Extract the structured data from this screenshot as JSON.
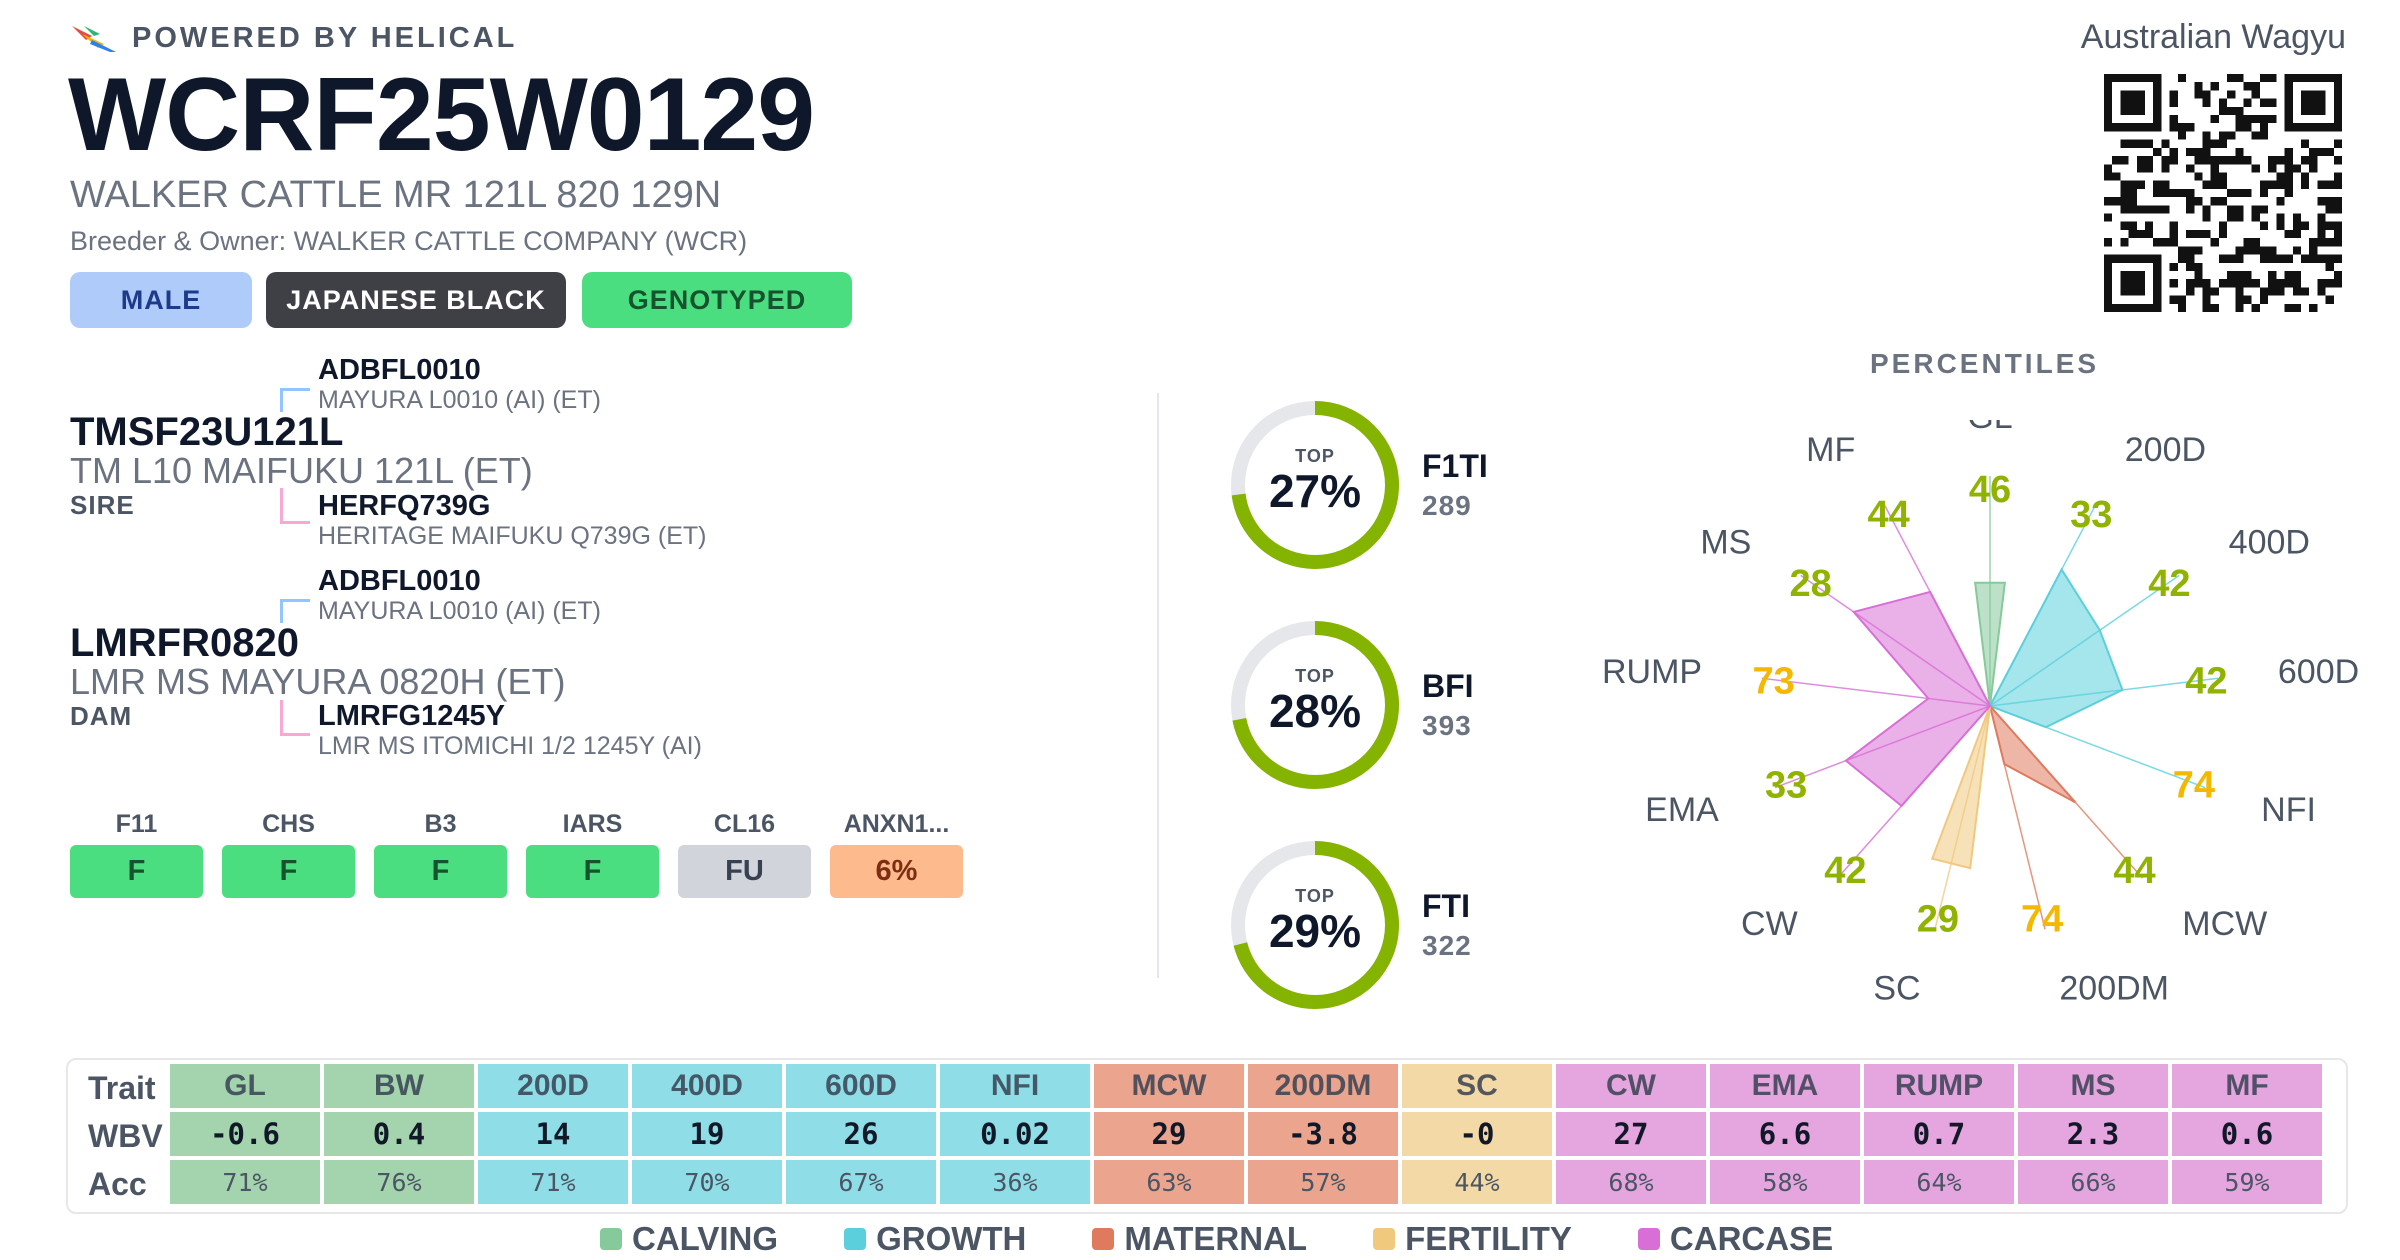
{
  "header": {
    "powered_by": "POWERED BY HELICAL",
    "animal_id": "WCRF25W0129",
    "registered_name": "WALKER CATTLE MR 121L 820 129N",
    "breeder_owner": "Breeder & Owner: WALKER CATTLE COMPANY (WCR)",
    "breed_society": "Australian Wagyu",
    "badges": [
      {
        "label": "MALE",
        "bg": "#aecbfa",
        "fg": "#1e3a8a"
      },
      {
        "label": "JAPANESE BLACK",
        "bg": "#3f3f46",
        "fg": "#ffffff"
      },
      {
        "label": "GENOTYPED",
        "bg": "#4ade80",
        "fg": "#14532d"
      }
    ]
  },
  "pedigree": {
    "sire": {
      "id": "TMSF23U121L",
      "name": "TM L10 MAIFUKU 121L (ET)",
      "role": "SIRE",
      "sire": {
        "id": "ADBFL0010",
        "name": "MAYURA L0010 (AI) (ET)"
      },
      "dam": {
        "id": "HERFQ739G",
        "name": "HERITAGE MAIFUKU Q739G (ET)"
      }
    },
    "dam": {
      "id": "LMRFR0820",
      "name": "LMR MS MAYURA 0820H (ET)",
      "role": "DAM",
      "sire": {
        "id": "ADBFL0010",
        "name": "MAYURA L0010 (AI) (ET)"
      },
      "dam": {
        "id": "LMRFG1245Y",
        "name": "LMR MS ITOMICHI 1/2 1245Y (AI)"
      }
    },
    "sire_line_color": "#93c5fd",
    "dam_line_color": "#f9a8d4"
  },
  "conditions": [
    {
      "label": "F11",
      "value": "F",
      "bg": "#4ade80",
      "fg": "#14532d"
    },
    {
      "label": "CHS",
      "value": "F",
      "bg": "#4ade80",
      "fg": "#14532d"
    },
    {
      "label": "B3",
      "value": "F",
      "bg": "#4ade80",
      "fg": "#14532d"
    },
    {
      "label": "IARS",
      "value": "F",
      "bg": "#4ade80",
      "fg": "#14532d"
    },
    {
      "label": "CL16",
      "value": "FU",
      "bg": "#d1d5db",
      "fg": "#374151"
    },
    {
      "label": "ANXN1...",
      "value": "6%",
      "bg": "#fdba8c",
      "fg": "#7c2d12"
    }
  ],
  "indexes": {
    "top_label": "TOP",
    "ring_color": "#84b300",
    "ring_track": "#e5e7eb",
    "items": [
      {
        "name": "F1TI",
        "value": "289",
        "top_pct_label": "27%",
        "top_pct": 27
      },
      {
        "name": "BFI",
        "value": "393",
        "top_pct_label": "28%",
        "top_pct": 28
      },
      {
        "name": "FTI",
        "value": "322",
        "top_pct_label": "29%",
        "top_pct": 29
      }
    ]
  },
  "percentiles": {
    "title": "PERCENTILES",
    "high_color": "#8fb300",
    "mid_color": "#f5b800",
    "traits": [
      {
        "name": "GL",
        "pct": 46,
        "group": "calving"
      },
      {
        "name": "200D",
        "pct": 33,
        "group": "growth"
      },
      {
        "name": "400D",
        "pct": 42,
        "group": "growth"
      },
      {
        "name": "600D",
        "pct": 42,
        "group": "growth"
      },
      {
        "name": "NFI",
        "pct": 74,
        "group": "growth"
      },
      {
        "name": "MCW",
        "pct": 44,
        "group": "maternal"
      },
      {
        "name": "200DM",
        "pct": 74,
        "group": "maternal"
      },
      {
        "name": "SC",
        "pct": 29,
        "group": "fertility"
      },
      {
        "name": "CW",
        "pct": 42,
        "group": "carcase"
      },
      {
        "name": "EMA",
        "pct": 33,
        "group": "carcase"
      },
      {
        "name": "RUMP",
        "pct": 73,
        "group": "carcase"
      },
      {
        "name": "MS",
        "pct": 28,
        "group": "carcase"
      },
      {
        "name": "MF",
        "pct": 44,
        "group": "carcase"
      }
    ]
  },
  "groups": {
    "calving": {
      "label": "CALVING",
      "color": "#86c99a",
      "cell": "#a3d4ae"
    },
    "growth": {
      "label": "GROWTH",
      "color": "#5bcfdc",
      "cell": "#8fdde6"
    },
    "maternal": {
      "label": "MATERNAL",
      "color": "#e07a5f",
      "cell": "#eba58f"
    },
    "fertility": {
      "label": "FERTILITY",
      "color": "#f0c97f",
      "cell": "#f3d9a6"
    },
    "carcase": {
      "label": "CARCASE",
      "color": "#d86fd6",
      "cell": "#e5a6e0"
    }
  },
  "table": {
    "row_labels": {
      "trait": "Trait",
      "wbv": "WBV",
      "acc": "Acc"
    },
    "columns": [
      {
        "trait": "GL",
        "wbv": "-0.6",
        "acc": "71%",
        "group": "calving"
      },
      {
        "trait": "BW",
        "wbv": "0.4",
        "acc": "76%",
        "group": "calving"
      },
      {
        "trait": "200D",
        "wbv": "14",
        "acc": "71%",
        "group": "growth"
      },
      {
        "trait": "400D",
        "wbv": "19",
        "acc": "70%",
        "group": "growth"
      },
      {
        "trait": "600D",
        "wbv": "26",
        "acc": "67%",
        "group": "growth"
      },
      {
        "trait": "NFI",
        "wbv": "0.02",
        "acc": "36%",
        "group": "growth"
      },
      {
        "trait": "MCW",
        "wbv": "29",
        "acc": "63%",
        "group": "maternal"
      },
      {
        "trait": "200DM",
        "wbv": "-3.8",
        "acc": "57%",
        "group": "maternal"
      },
      {
        "trait": "SC",
        "wbv": "-0",
        "acc": "44%",
        "group": "fertility"
      },
      {
        "trait": "CW",
        "wbv": "27",
        "acc": "68%",
        "group": "carcase"
      },
      {
        "trait": "EMA",
        "wbv": "6.6",
        "acc": "58%",
        "group": "carcase"
      },
      {
        "trait": "RUMP",
        "wbv": "0.7",
        "acc": "64%",
        "group": "carcase"
      },
      {
        "trait": "MS",
        "wbv": "2.3",
        "acc": "66%",
        "group": "carcase"
      },
      {
        "trait": "MF",
        "wbv": "0.6",
        "acc": "59%",
        "group": "carcase"
      }
    ]
  },
  "legend": [
    "calving",
    "growth",
    "maternal",
    "fertility",
    "carcase"
  ]
}
